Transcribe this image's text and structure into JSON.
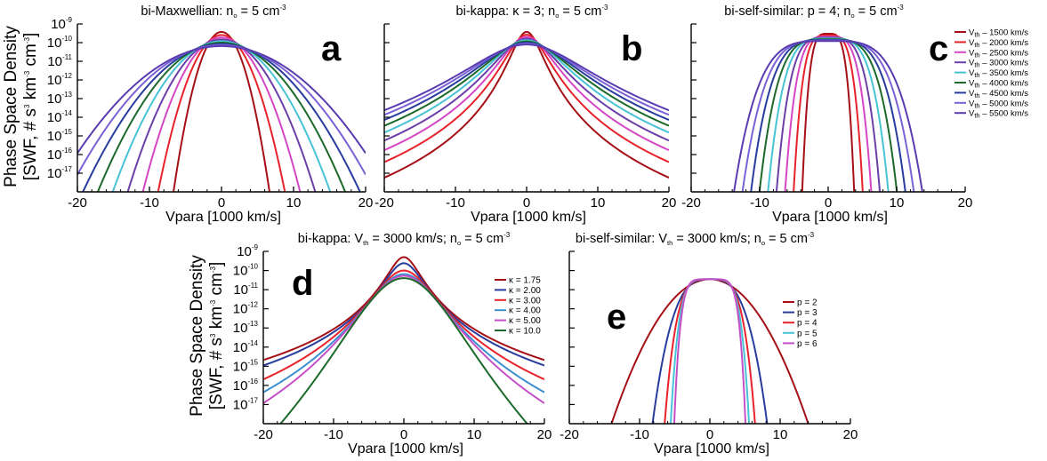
{
  "figure": {
    "ylabel_line1": "Phase Space Density",
    "ylabel_line2_prefix": "[SWF, # s",
    "ylabel_line2_mid1": " km",
    "ylabel_line2_mid2": " cm",
    "ylabel_line2_suffix": "]",
    "ylabel_sup3": "3",
    "ylabel_sup_neg3": "-3",
    "xlabel": "Vpara [1000 km/s]"
  },
  "chart_data": [
    {
      "panel": "a",
      "type": "line",
      "model": "bi-maxwellian",
      "title_text": "bi-Maxwellian:  n",
      "title_sub": "o",
      "title_tail": " = 5 cm",
      "title_sup": "-3",
      "xlim": [
        -20,
        20
      ],
      "ylim_log10": [
        -18,
        -9
      ],
      "y_scale": "log",
      "xticks": [
        "-20",
        "-10",
        "0",
        "10",
        "20"
      ],
      "yticks": [
        -9,
        -10,
        -11,
        -12,
        -13,
        -14,
        -15,
        -16,
        -17
      ],
      "legend": false,
      "n0": 5,
      "series": [
        {
          "vth": 1500,
          "color": "#a50f15"
        },
        {
          "vth": 2000,
          "color": "#e8222a"
        },
        {
          "vth": 2500,
          "color": "#d546c4"
        },
        {
          "vth": 3000,
          "color": "#6b3fa8"
        },
        {
          "vth": 3500,
          "color": "#48c3d6"
        },
        {
          "vth": 4000,
          "color": "#1b6a2a"
        },
        {
          "vth": 4500,
          "color": "#283c9e"
        },
        {
          "vth": 5000,
          "color": "#7b61d6"
        },
        {
          "vth": 5500,
          "color": "#5a3bb0"
        }
      ]
    },
    {
      "panel": "b",
      "type": "line",
      "model": "bi-kappa",
      "title_text": "bi-kappa:  κ = 3;  n",
      "title_sub": "o",
      "title_tail": " = 5 cm",
      "title_sup": "-3",
      "xlim": [
        -20,
        20
      ],
      "ylim_log10": [
        -18,
        -9
      ],
      "y_scale": "log",
      "xticks": [
        "-20",
        "-10",
        "0",
        "10",
        "20"
      ],
      "legend": false,
      "kappa": 3,
      "n0": 5,
      "series": [
        {
          "vth": 1500,
          "color": "#a50f15"
        },
        {
          "vth": 2000,
          "color": "#e8222a"
        },
        {
          "vth": 2500,
          "color": "#d546c4"
        },
        {
          "vth": 3000,
          "color": "#6b3fa8"
        },
        {
          "vth": 3500,
          "color": "#48c3d6"
        },
        {
          "vth": 4000,
          "color": "#1b6a2a"
        },
        {
          "vth": 4500,
          "color": "#283c9e"
        },
        {
          "vth": 5000,
          "color": "#7b61d6"
        },
        {
          "vth": 5500,
          "color": "#5a3bb0"
        }
      ]
    },
    {
      "panel": "c",
      "type": "line",
      "model": "bi-self-similar",
      "title_text": "bi-self-similar:  p = 4;  n",
      "title_sub": "o",
      "title_tail": " = 5 cm",
      "title_sup": "-3",
      "xlim": [
        -20,
        20
      ],
      "ylim_log10": [
        -18,
        -9
      ],
      "y_scale": "log",
      "xticks": [
        "-20",
        "-10",
        "0",
        "10",
        "20"
      ],
      "legend": true,
      "legend_position": "right",
      "p": 4,
      "n0": 5,
      "series": [
        {
          "label_pre": "V",
          "label_sub": "th",
          "label_post": " – 1500 km/s",
          "vth": 1500,
          "color": "#a50f15"
        },
        {
          "label_pre": "V",
          "label_sub": "th",
          "label_post": " – 2000 km/s",
          "vth": 2000,
          "color": "#e8222a"
        },
        {
          "label_pre": "V",
          "label_sub": "th",
          "label_post": " – 2500 km/s",
          "vth": 2500,
          "color": "#d546c4"
        },
        {
          "label_pre": "V",
          "label_sub": "th",
          "label_post": " – 3000 km/s",
          "vth": 3000,
          "color": "#6b3fa8"
        },
        {
          "label_pre": "V",
          "label_sub": "th",
          "label_post": " – 3500 km/s",
          "vth": 3500,
          "color": "#48c3d6"
        },
        {
          "label_pre": "V",
          "label_sub": "th",
          "label_post": " – 4000 km/s",
          "vth": 4000,
          "color": "#1b6a2a"
        },
        {
          "label_pre": "V",
          "label_sub": "th",
          "label_post": " – 4500 km/s",
          "vth": 4500,
          "color": "#283c9e"
        },
        {
          "label_pre": "V",
          "label_sub": "th",
          "label_post": " – 5000 km/s",
          "vth": 5000,
          "color": "#7b61d6"
        },
        {
          "label_pre": "V",
          "label_sub": "th",
          "label_post": " – 5500 km/s",
          "vth": 5500,
          "color": "#5a3bb0"
        }
      ]
    },
    {
      "panel": "d",
      "type": "line",
      "model": "bi-kappa",
      "title_text": "bi-kappa:  V",
      "title_sub": "th",
      "title_tail": " = 3000 km/s;  n",
      "title_sub2": "o",
      "title_tail2": " = 5 cm",
      "title_sup": "-3",
      "xlim": [
        -20,
        20
      ],
      "ylim_log10": [
        -18,
        -9
      ],
      "y_scale": "log",
      "xticks": [
        "-20",
        "-10",
        "0",
        "10",
        "20"
      ],
      "yticks": [
        -9,
        -10,
        -11,
        -12,
        -13,
        -14,
        -15,
        -16,
        -17
      ],
      "legend": true,
      "legend_position": "right",
      "vth": 3000,
      "n0": 5,
      "series": [
        {
          "label": "κ = 1.75",
          "kappa": 1.75,
          "color": "#a50f15"
        },
        {
          "label": "κ = 2.00",
          "kappa": 2.0,
          "color": "#283c9e"
        },
        {
          "label": "κ = 3.00",
          "kappa": 3.0,
          "color": "#e8222a"
        },
        {
          "label": "κ = 4.00",
          "kappa": 4.0,
          "color": "#3b8fd0"
        },
        {
          "label": "κ = 5.00",
          "kappa": 5.0,
          "color": "#c54fc7"
        },
        {
          "label": "κ = 10.0",
          "kappa": 10.0,
          "color": "#1b6a2a"
        }
      ]
    },
    {
      "panel": "e",
      "type": "line",
      "model": "bi-self-similar",
      "title_text": "bi-self-similar:  V",
      "title_sub": "th",
      "title_tail": " = 3000 km/s;  n",
      "title_sub2": "o",
      "title_tail2": " = 5 cm",
      "title_sup": "-3",
      "xlim": [
        -20,
        20
      ],
      "ylim_log10": [
        -18,
        -9
      ],
      "y_scale": "log",
      "xticks": [
        "-20",
        "-10",
        "0",
        "10",
        "20"
      ],
      "legend": true,
      "legend_position": "right",
      "vth": 3000,
      "n0": 5,
      "series": [
        {
          "label": "p = 2",
          "p": 2,
          "color": "#a50f15"
        },
        {
          "label": "p = 3",
          "p": 3,
          "color": "#283c9e"
        },
        {
          "label": "p = 4",
          "p": 4,
          "color": "#e8222a"
        },
        {
          "label": "p = 5",
          "p": 5,
          "color": "#48c3d6"
        },
        {
          "label": "p = 6",
          "p": 6,
          "color": "#c54fc7"
        }
      ]
    }
  ]
}
